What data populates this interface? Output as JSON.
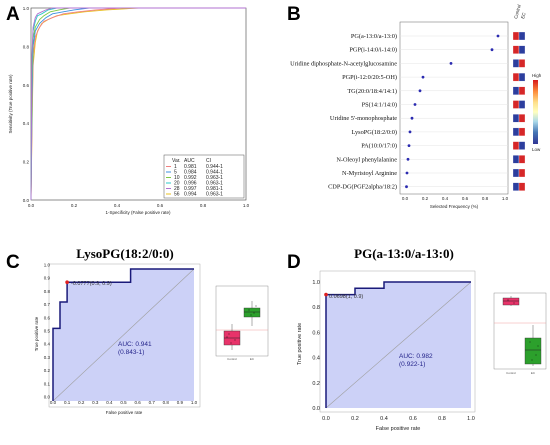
{
  "figure": {
    "background": "#ffffff"
  },
  "chart_data": [
    {
      "id": "A",
      "type": "line",
      "panel_label": "A",
      "xlabel": "1-Specificity (False positive rate)",
      "ylabel": "Sensitivity (True positive rate)",
      "xlim": [
        0,
        1
      ],
      "ylim": [
        0,
        1
      ],
      "ticks": [
        "0.0",
        "0.2",
        "0.4",
        "0.6",
        "0.8",
        "1.0"
      ],
      "legend": {
        "placement": "bottom-right",
        "headers": [
          "Var.",
          "AUC",
          "CI"
        ],
        "rows": [
          {
            "var": "1",
            "auc": "0.981",
            "ci": "0.944-1",
            "color": "#f08080"
          },
          {
            "var": "5",
            "auc": "0.984",
            "ci": "0.944-1",
            "color": "#3b8fe0"
          },
          {
            "var": "10",
            "auc": "0.992",
            "ci": "0.963-1",
            "color": "#7cc943"
          },
          {
            "var": "20",
            "auc": "0.996",
            "ci": "0.963-1",
            "color": "#28c8c8"
          },
          {
            "var": "28",
            "auc": "0.997",
            "ci": "0.981-1",
            "color": "#b070d0"
          },
          {
            "var": "56",
            "auc": "0.994",
            "ci": "0.963-1",
            "color": "#e8c020"
          }
        ]
      },
      "series": [
        {
          "color": "#e8c020",
          "x": [
            0,
            0.005,
            0.01,
            0.02,
            0.03,
            0.05,
            0.08,
            0.12,
            0.18,
            0.25,
            0.35,
            0.5,
            1.0
          ],
          "y": [
            0,
            0.4,
            0.7,
            0.82,
            0.88,
            0.92,
            0.94,
            0.96,
            0.97,
            0.98,
            0.99,
            1.0,
            1.0
          ]
        },
        {
          "color": "#f08080",
          "x": [
            0,
            0.005,
            0.01,
            0.02,
            0.04,
            0.06,
            0.1,
            0.15,
            0.22,
            0.3,
            0.42,
            1.0
          ],
          "y": [
            0,
            0.45,
            0.75,
            0.85,
            0.9,
            0.93,
            0.95,
            0.97,
            0.98,
            0.99,
            1.0,
            1.0
          ]
        },
        {
          "color": "#3b8fe0",
          "x": [
            0,
            0.005,
            0.01,
            0.02,
            0.04,
            0.07,
            0.1,
            0.15,
            0.2,
            0.27,
            1.0
          ],
          "y": [
            0,
            0.55,
            0.8,
            0.88,
            0.92,
            0.95,
            0.97,
            0.98,
            0.99,
            1.0,
            1.0
          ]
        },
        {
          "color": "#7cc943",
          "x": [
            0,
            0.005,
            0.01,
            0.02,
            0.04,
            0.06,
            0.09,
            0.13,
            0.18,
            1.0
          ],
          "y": [
            0,
            0.6,
            0.84,
            0.9,
            0.94,
            0.96,
            0.98,
            0.99,
            1.0,
            1.0
          ]
        },
        {
          "color": "#28c8c8",
          "x": [
            0,
            0.005,
            0.01,
            0.02,
            0.03,
            0.05,
            0.08,
            0.12,
            1.0
          ],
          "y": [
            0,
            0.7,
            0.88,
            0.93,
            0.96,
            0.97,
            0.99,
            1.0,
            1.0
          ]
        },
        {
          "color": "#b070d0",
          "x": [
            0,
            0.004,
            0.01,
            0.02,
            0.03,
            0.05,
            0.07,
            0.1,
            1.0
          ],
          "y": [
            0,
            0.75,
            0.9,
            0.95,
            0.97,
            0.98,
            0.99,
            1.0,
            1.0
          ]
        }
      ]
    },
    {
      "id": "B",
      "type": "scatter",
      "panel_label": "B",
      "xlabel": "Selected Frequency (%)",
      "xlim": [
        0,
        1
      ],
      "ticks": [
        "0.0",
        "0.2",
        "0.4",
        "0.6",
        "0.8",
        "1.0"
      ],
      "heat_headers": [
        "Control",
        "EC"
      ],
      "colorbar": {
        "high_label": "High",
        "low_label": "Low",
        "colors": [
          "#d7191c",
          "#fd8d3c",
          "#fee08b",
          "#ffffbf",
          "#abd9e9",
          "#4575b4",
          "#313695"
        ]
      },
      "features": [
        {
          "name": "PG(a-13:0/a-13:0)",
          "freq": 0.93,
          "control": "#d62728",
          "ec": "#2c3e9e"
        },
        {
          "name": "PGP(i-14:0/i-14:0)",
          "freq": 0.87,
          "control": "#d62728",
          "ec": "#2c3e9e"
        },
        {
          "name": "Uridine diphosphate-N-acetylglucosamine",
          "freq": 0.46,
          "control": "#2c3e9e",
          "ec": "#d62728"
        },
        {
          "name": "PGP(i-12:0/20:5-OH)",
          "freq": 0.18,
          "control": "#d62728",
          "ec": "#2c3e9e"
        },
        {
          "name": "TG(20:0/18:4/14:1)",
          "freq": 0.15,
          "control": "#2c3e9e",
          "ec": "#d62728"
        },
        {
          "name": "PS(14:1/14:0)",
          "freq": 0.1,
          "control": "#d62728",
          "ec": "#2c3e9e"
        },
        {
          "name": "Uridine 5'-monophosphate",
          "freq": 0.07,
          "control": "#2c3e9e",
          "ec": "#d62728"
        },
        {
          "name": "LysoPG(18:2/0:0)",
          "freq": 0.05,
          "control": "#2c3e9e",
          "ec": "#d62728"
        },
        {
          "name": "PA(10:0/17:0)",
          "freq": 0.04,
          "control": "#d62728",
          "ec": "#2c3e9e"
        },
        {
          "name": "N-Oleoyl phenylalanine",
          "freq": 0.03,
          "control": "#2c3e9e",
          "ec": "#d62728"
        },
        {
          "name": "N-Myristoyl Arginine",
          "freq": 0.02,
          "control": "#2c3e9e",
          "ec": "#d62728"
        },
        {
          "name": "CDP-DG(PGF2alpha/18:2)",
          "freq": 0.015,
          "control": "#2c3e9e",
          "ec": "#d62728"
        }
      ]
    },
    {
      "id": "C",
      "type": "line",
      "panel_label": "C",
      "title": "LysoPG(18:2/0:0)",
      "xlabel": "False positive rate",
      "ylabel": "True positive rate",
      "xlim": [
        0,
        1
      ],
      "ylim": [
        0,
        1
      ],
      "ticks": [
        "0.0",
        "0.1",
        "0.2",
        "0.3",
        "0.4",
        "0.5",
        "0.6",
        "0.7",
        "0.8",
        "0.9",
        "1.0"
      ],
      "roc": {
        "x": [
          0,
          0,
          0.05,
          0.05,
          0.1,
          0.1,
          0.55,
          0.55,
          1.0
        ],
        "y": [
          0,
          0.55,
          0.55,
          0.75,
          0.75,
          0.9,
          0.9,
          1.0,
          1.0
        ]
      },
      "optimal_point": {
        "x": 0.1,
        "y": 0.9,
        "label": "-0.0777(0.9, 0.9)"
      },
      "auc_text": "AUC: 0.941",
      "ci_text": "(0.843-1)",
      "box_groups": [
        "Control",
        "EC"
      ],
      "box_colors": [
        "#e8336a",
        "#2ca02c"
      ]
    },
    {
      "id": "D",
      "type": "line",
      "panel_label": "D",
      "title": "PG(a-13:0/a-13:0)",
      "xlabel": "False positive rate",
      "ylabel": "True positive rate",
      "xlim": [
        0,
        1
      ],
      "ylim": [
        0,
        1
      ],
      "ticks": [
        "0.0",
        "0.2",
        "0.4",
        "0.6",
        "0.8",
        "1.0"
      ],
      "roc": {
        "x": [
          0,
          0,
          0.2,
          0.2,
          0.4,
          0.4,
          1.0
        ],
        "y": [
          0,
          0.9,
          0.9,
          0.95,
          0.95,
          1.0,
          1.0
        ]
      },
      "optimal_point": {
        "x": 0.0,
        "y": 0.9,
        "label": "0.0698(1, 0.9)"
      },
      "auc_text": "AUC: 0.982",
      "ci_text": "(0.922-1)",
      "box_groups": [
        "Control",
        "EC"
      ],
      "box_colors": [
        "#e8336a",
        "#2ca02c"
      ]
    }
  ]
}
